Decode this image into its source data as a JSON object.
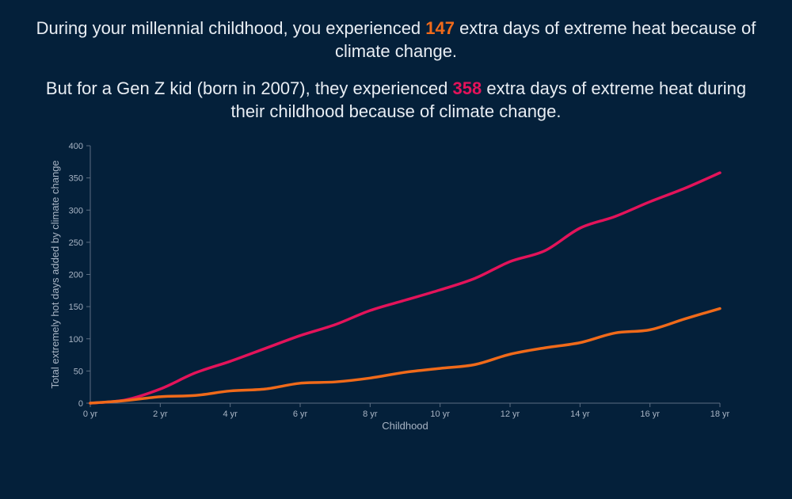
{
  "headline": {
    "line1_before": "During your millennial childhood, you experienced ",
    "line1_number": "147",
    "line1_after": " extra days of extreme heat because of climate change.",
    "line2_before": "But for a Gen Z kid (born in 2007), they experienced ",
    "line2_number": "358",
    "line2_after": " extra days of extreme heat during their childhood because of climate change."
  },
  "colors": {
    "background": "#04203a",
    "millennial": "#f06a1a",
    "genz": "#e3135a",
    "axis": "#5b6d82",
    "text": "#a8b4c4"
  },
  "chart_data": {
    "type": "line",
    "title": "",
    "xlabel": "Childhood",
    "ylabel": "Total extremely hot days added by climate change",
    "xlim": [
      0,
      18
    ],
    "ylim": [
      0,
      400
    ],
    "x_ticks": [
      0,
      2,
      4,
      6,
      8,
      10,
      12,
      14,
      16,
      18
    ],
    "x_tick_labels": [
      "0 yr",
      "2 yr",
      "4 yr",
      "6 yr",
      "8 yr",
      "10 yr",
      "12 yr",
      "14 yr",
      "16 yr",
      "18 yr"
    ],
    "y_ticks": [
      0,
      50,
      100,
      150,
      200,
      250,
      300,
      350,
      400
    ],
    "y_tick_labels": [
      "0",
      "50",
      "100",
      "150",
      "200",
      "250",
      "300",
      "350",
      "400"
    ],
    "grid": false,
    "x": [
      0,
      1,
      2,
      3,
      4,
      5,
      6,
      7,
      8,
      9,
      10,
      11,
      12,
      13,
      14,
      15,
      16,
      17,
      18
    ],
    "series": [
      {
        "name": "Gen Z kid (born 2007)",
        "color": "#e3135a",
        "values": [
          0,
          5,
          22,
          47,
          65,
          85,
          105,
          122,
          144,
          160,
          176,
          194,
          220,
          237,
          272,
          290,
          313,
          334,
          358
        ]
      },
      {
        "name": "Millennial childhood",
        "color": "#f06a1a",
        "values": [
          0,
          4,
          10,
          12,
          19,
          22,
          31,
          33,
          39,
          48,
          54,
          60,
          76,
          86,
          94,
          109,
          114,
          131,
          147
        ]
      }
    ]
  }
}
